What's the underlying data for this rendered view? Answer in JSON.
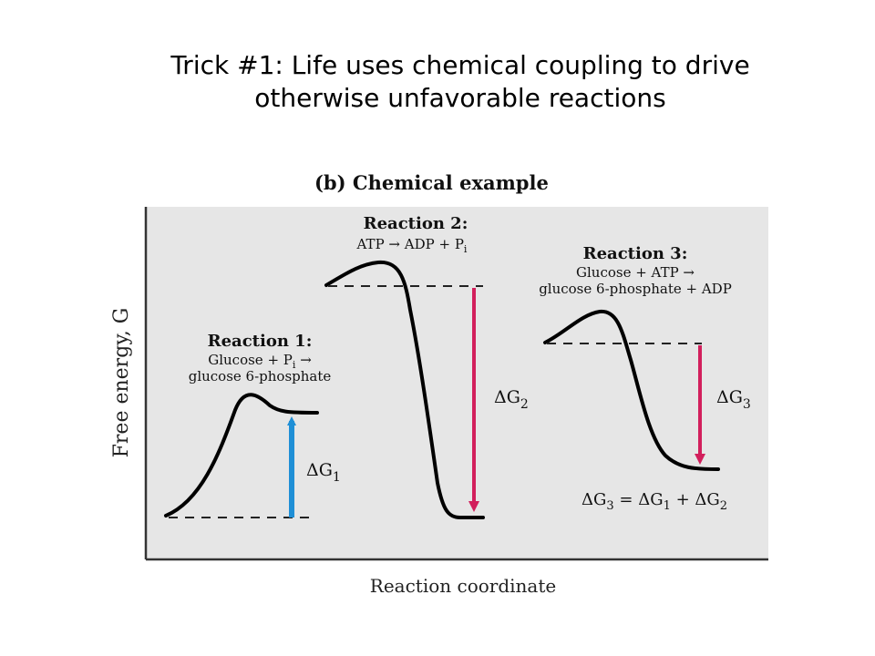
{
  "slide": {
    "title_line1": "Trick #1: Life uses chemical coupling to drive",
    "title_line2": "otherwise unfavorable reactions"
  },
  "figure": {
    "panel_title": "(b) Chemical example",
    "y_axis_label": "Free energy, G",
    "x_axis_label": "Reaction coordinate",
    "reaction1": {
      "heading": "Reaction 1:",
      "line1": "Glucose + P",
      "line1_sub": "i",
      "line1_arrow": " →",
      "line2": "glucose 6-phosphate",
      "delta_label": "ΔG",
      "delta_sub": "1",
      "arrow_color": "#1f8fd6"
    },
    "reaction2": {
      "heading": "Reaction 2:",
      "line1": "ATP → ADP + P",
      "line1_sub": "i",
      "delta_label": "ΔG",
      "delta_sub": "2",
      "arrow_color": "#d21f5c"
    },
    "reaction3": {
      "heading": "Reaction 3:",
      "line1": "Glucose + ATP →",
      "line2": "glucose 6-phosphate + ADP",
      "delta_label": "ΔG",
      "delta_sub": "3",
      "arrow_color": "#d21f5c"
    },
    "equation": {
      "a": "ΔG",
      "a_sub": "3",
      "b": " = ΔG",
      "b_sub": "1",
      "c": " + ΔG",
      "c_sub": "2"
    },
    "panel_bg": "#e6e6e6"
  }
}
